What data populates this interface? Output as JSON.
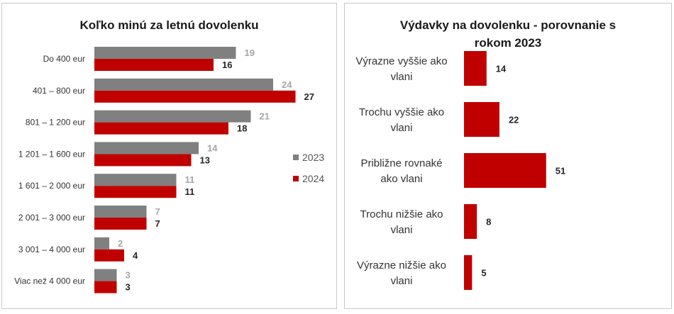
{
  "chart_data": [
    {
      "type": "bar",
      "orientation": "horizontal",
      "title": "Koľko minú za letnú dovolenku",
      "categories": [
        "Do 400 eur",
        "401 – 800 eur",
        "801 – 1 200 eur",
        "1 201 – 1 600 eur",
        "1 601 – 2 000 eur",
        "2 001 – 3 000 eur",
        "3 001 – 4 000 eur",
        "Viac než 4 000 eur"
      ],
      "series": [
        {
          "name": "2023",
          "color": "#808080",
          "label_color": "#a6a6a6",
          "values": [
            19,
            24,
            21,
            14,
            11,
            7,
            2,
            3
          ]
        },
        {
          "name": "2024",
          "color": "#c00000",
          "label_color": "#262626",
          "values": [
            16,
            27,
            18,
            13,
            11,
            7,
            4,
            3
          ]
        }
      ],
      "legend_position": "right",
      "grid": false
    },
    {
      "type": "bar",
      "orientation": "horizontal",
      "title": "Výdavky na dovolenku - porovnanie s rokom 2023",
      "categories": [
        [
          "Výrazne vyššie ako",
          "vlani"
        ],
        [
          "Trochu vyššie ako",
          "vlani"
        ],
        [
          "Približne rovnaké",
          "ako vlani"
        ],
        [
          "Trochu nižšie ako",
          "vlani"
        ],
        [
          "Výrazne nižšie ako",
          "vlani"
        ]
      ],
      "values": [
        14,
        22,
        51,
        8,
        5
      ],
      "color": "#c00000",
      "label_color": "#262626",
      "grid": false
    }
  ]
}
